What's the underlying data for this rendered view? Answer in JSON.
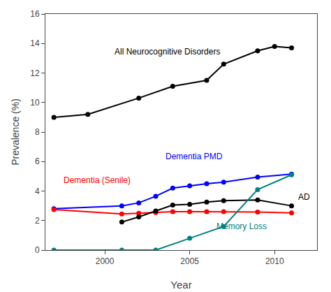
{
  "chart_data": {
    "type": "line",
    "xlabel": "Year",
    "ylabel": "Prevalence (%)",
    "xlim": [
      1996.5,
      2012.5
    ],
    "ylim": [
      0,
      16
    ],
    "xticks": [
      2000,
      2005,
      2010
    ],
    "yticks": [
      0,
      2,
      4,
      6,
      8,
      10,
      12,
      14,
      16
    ],
    "grid": false,
    "marker": "circle",
    "series": [
      {
        "name": "All Neurocognitive Disorders",
        "color": "#000000",
        "x": [
          1997,
          1999,
          2002,
          2004,
          2006,
          2007,
          2009,
          2010,
          2011
        ],
        "values": [
          9.0,
          9.2,
          10.3,
          11.1,
          11.5,
          12.6,
          13.5,
          13.8,
          13.7
        ]
      },
      {
        "name": "Dementia PMD",
        "color": "#0000ff",
        "x": [
          1997,
          2001,
          2002,
          2003,
          2004,
          2005,
          2006,
          2007,
          2009,
          2011
        ],
        "values": [
          2.8,
          3.0,
          3.2,
          3.65,
          4.2,
          4.35,
          4.5,
          4.6,
          4.95,
          5.15
        ]
      },
      {
        "name": "Dementia (Senile)",
        "color": "#ff0000",
        "x": [
          1997,
          2001,
          2002,
          2003,
          2004,
          2005,
          2006,
          2007,
          2009,
          2011
        ],
        "values": [
          2.75,
          2.45,
          2.5,
          2.55,
          2.6,
          2.6,
          2.6,
          2.6,
          2.58,
          2.52
        ]
      },
      {
        "name": "AD",
        "color": "#000000",
        "x": [
          2001,
          2002,
          2003,
          2004,
          2005,
          2006,
          2007,
          2009,
          2011
        ],
        "values": [
          1.9,
          2.25,
          2.65,
          3.05,
          3.1,
          3.25,
          3.35,
          3.4,
          3.0
        ]
      },
      {
        "name": "Memory Loss",
        "color": "#008080",
        "x": [
          1997,
          2001,
          2003,
          2005,
          2007,
          2009,
          2011
        ],
        "values": [
          0.0,
          0.0,
          0.0,
          0.8,
          1.6,
          4.1,
          5.1
        ]
      }
    ],
    "annotations": [
      {
        "text": "All Neurocognitive Disorders",
        "x": 2000.5,
        "y": 13.0,
        "color": "#000000"
      },
      {
        "text": "Dementia PMD",
        "x": 2003.5,
        "y": 5.9,
        "color": "#0000ff"
      },
      {
        "text": "Dementia (Senile)",
        "x": 1997.5,
        "y": 4.3,
        "color": "#ff0000"
      },
      {
        "text": "AD",
        "x": 2011.3,
        "y": 3.15,
        "color": "#000000"
      },
      {
        "text": "Memory Loss",
        "x": 2006.5,
        "y": 1.2,
        "color": "#008080"
      }
    ]
  }
}
